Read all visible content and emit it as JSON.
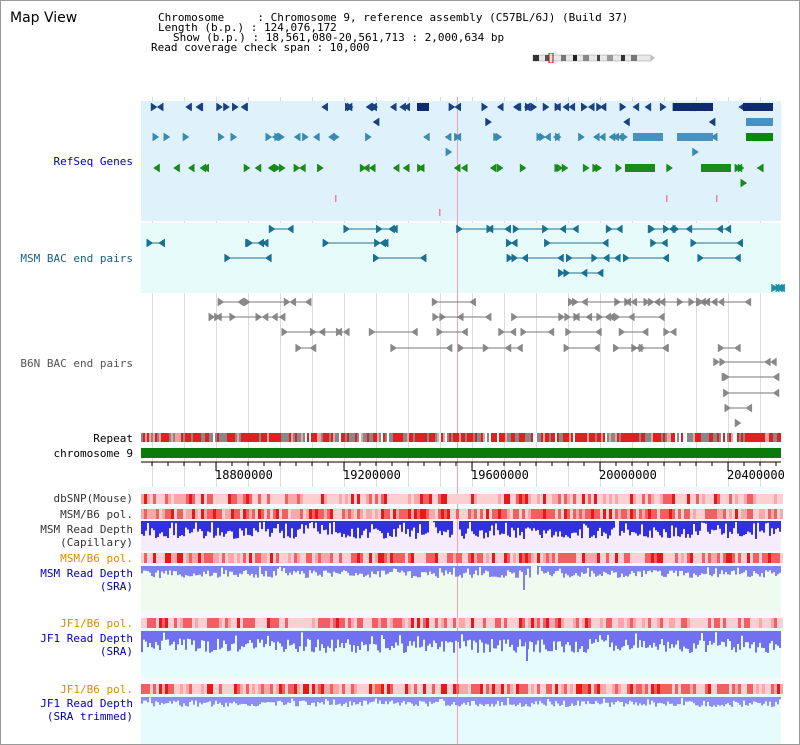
{
  "header": {
    "title": "Map View",
    "info_lines": [
      "Chromosome     : Chromosome 9, reference assembly (C57BL/6J) (Build 37)",
      "Length (b.p.) : 124,076,172",
      "Show (b.p.) : 18,561,080-20,561,713 : 2,000,634 bp",
      "Read coverage check span : 10,000"
    ]
  },
  "tracks": {
    "refseq": "RefSeq Genes",
    "msm_bac": "MSM BAC end pairs",
    "b6n_bac": "B6N BAC end pairs",
    "repeat": "Repeat",
    "chromosome": "chromosome 9",
    "dbsnp": "dbSNP(Mouse)",
    "msm_b6_pol": "MSM/B6 pol.",
    "msm_depth_cap_1": "MSM Read Depth",
    "msm_depth_cap_2": "(Capillary)",
    "msm_b6_pol_2": "MSM/B6 pol.",
    "msm_depth_sra_1": "MSM Read Depth",
    "msm_depth_sra_2": "(SRA)",
    "jf1_b6_pol": "JF1/B6 pol.",
    "jf1_depth_sra_1": "JF1 Read Depth",
    "jf1_depth_sra_2": "(SRA)",
    "jf1_b6_pol_2": "JF1/B6 pol.",
    "jf1_depth_trim_1": "JF1 Read Depth",
    "jf1_depth_trim_2": "(SRA trimmed)"
  },
  "axis": {
    "ticks": [
      "18800000",
      "19200000",
      "19600000",
      "20000000",
      "20400000"
    ]
  },
  "colors": {
    "refseq_bg": "#dff2fb",
    "msm_bac_bg": "#e8fbfb",
    "repeat_red": "#e02020",
    "chromosome_green": "#0a7a0a",
    "msm_depth_blue": "#3030e0",
    "sra_depth_blue": "#8080f0",
    "label_blue": "#0000b0",
    "label_teal": "#1a6080",
    "label_orange": "#e08a00"
  }
}
